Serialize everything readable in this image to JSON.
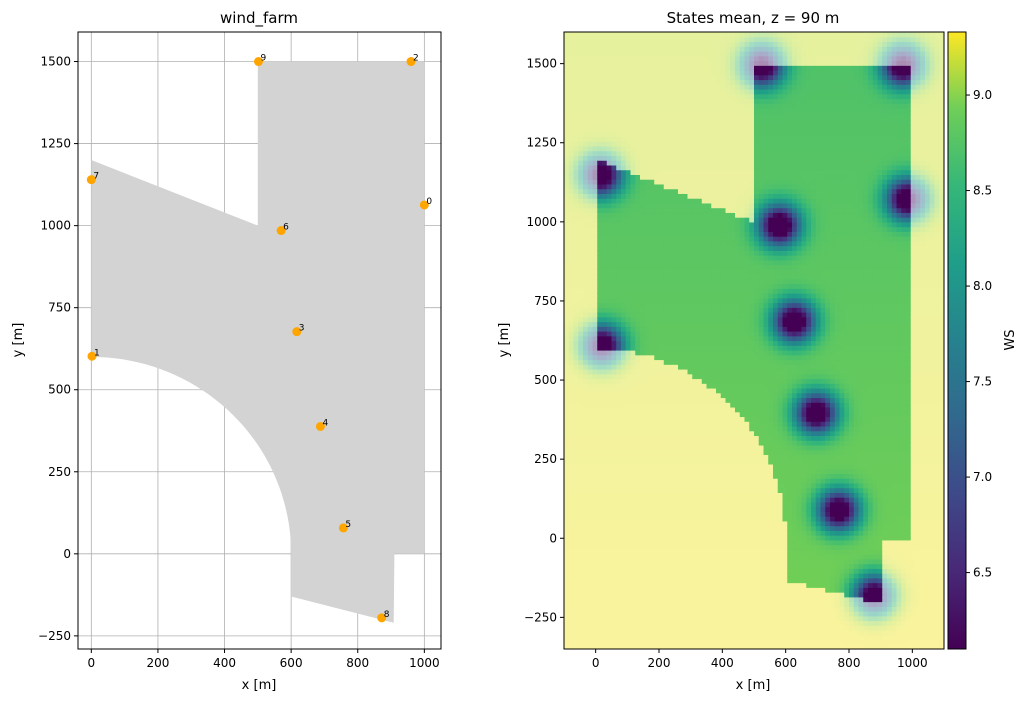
{
  "chart_data": [
    {
      "type": "scatter",
      "title": "wind_farm",
      "xlabel": "x [m]",
      "ylabel": "y [m]",
      "xlim": [
        -40,
        1050
      ],
      "ylim": [
        -290,
        1590
      ],
      "grid": true,
      "x_ticks": [
        0,
        200,
        400,
        600,
        800,
        1000
      ],
      "y_ticks": [
        -250,
        0,
        250,
        500,
        750,
        1000,
        1250,
        1500
      ],
      "area_color": "#d3d3d3",
      "marker_color": "#ffa500",
      "turbines": [
        {
          "label": "0",
          "x": 1000,
          "y": 1063
        },
        {
          "label": "1",
          "x": 2,
          "y": 602
        },
        {
          "label": "2",
          "x": 960,
          "y": 1500
        },
        {
          "label": "3",
          "x": 617,
          "y": 677
        },
        {
          "label": "4",
          "x": 688,
          "y": 388
        },
        {
          "label": "5",
          "x": 757,
          "y": 79
        },
        {
          "label": "6",
          "x": 570,
          "y": 985
        },
        {
          "label": "7",
          "x": 0,
          "y": 1140
        },
        {
          "label": "8",
          "x": 872,
          "y": -195
        },
        {
          "label": "9",
          "x": 502,
          "y": 1500
        }
      ],
      "boundary": {
        "top_block": {
          "x": [
            500,
            1000
          ],
          "y": [
            1000,
            1500
          ]
        },
        "left_edge_x": 0,
        "left_top_y": 1200,
        "notch_point": {
          "x": 500,
          "y": 1000
        },
        "arc_center": {
          "x": 0,
          "y": 0
        },
        "arc_radius": 600,
        "bottom_left_corner": {
          "x": 600,
          "y": -130
        },
        "bottom_right_corner": {
          "x": 908,
          "y": -210
        },
        "right_step": {
          "x": [
            910,
            1000
          ],
          "y": 0
        }
      }
    },
    {
      "type": "heatmap",
      "title": "States mean, z =  90 m",
      "xlabel": "x [m]",
      "ylabel": "y [m]",
      "xlim": [
        -100,
        1100
      ],
      "ylim": [
        -350,
        1600
      ],
      "x_ticks": [
        0,
        200,
        400,
        600,
        800,
        1000
      ],
      "y_ticks": [
        -250,
        0,
        250,
        500,
        750,
        1000,
        1250,
        1500
      ],
      "colorbar": {
        "label": "WS",
        "range": [
          6.1,
          9.33
        ],
        "ticks": [
          6.5,
          7.0,
          7.5,
          8.0,
          8.5,
          9.0
        ],
        "colormap": "viridis"
      },
      "freestream_ws": 9.3,
      "wake_centers": [
        {
          "x": 985,
          "y": 1073
        },
        {
          "x": 20,
          "y": 610
        },
        {
          "x": 970,
          "y": 1497
        },
        {
          "x": 627,
          "y": 687
        },
        {
          "x": 697,
          "y": 397
        },
        {
          "x": 767,
          "y": 90
        },
        {
          "x": 580,
          "y": 990
        },
        {
          "x": 15,
          "y": 1150
        },
        {
          "x": 880,
          "y": -180
        },
        {
          "x": 525,
          "y": 1497
        }
      ]
    }
  ]
}
